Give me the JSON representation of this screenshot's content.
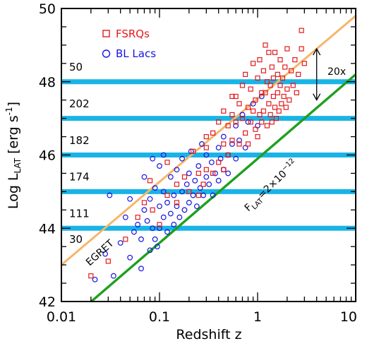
{
  "chart_data": {
    "type": "scatter",
    "xlabel": "Redshift z",
    "ylabel": "Log L",
    "ylabel_sub": "LAT",
    "ylabel_units": "[erg s",
    "ylabel_units_exp": "-1",
    "ylabel_units_close": "]",
    "xscale": "log",
    "xlim": [
      0.01,
      10
    ],
    "ylim": [
      42,
      50
    ],
    "x_ticks": [
      0.01,
      0.1,
      1,
      10
    ],
    "x_tick_labels": [
      "0.01",
      "0.1",
      "1",
      "10"
    ],
    "y_ticks": [
      42,
      44,
      46,
      48,
      50
    ],
    "y_tick_labels": [
      "42",
      "44",
      "46",
      "48",
      "50"
    ],
    "legend": {
      "placement": "top-left",
      "entries": [
        {
          "label": "FSRQs",
          "marker": "square",
          "color": "#e31a1c"
        },
        {
          "label": "BL Lacs",
          "marker": "circle",
          "color": "#1515e0"
        }
      ]
    },
    "bands": {
      "color": "#19b4e6",
      "y": [
        44,
        45,
        46,
        47,
        48
      ],
      "count_labels": [
        {
          "text": "30",
          "y": 43.7
        },
        {
          "text": "111",
          "y": 44.4
        },
        {
          "text": "174",
          "y": 45.4
        },
        {
          "text": "182",
          "y": 46.4
        },
        {
          "text": "202",
          "y": 47.4
        },
        {
          "text": "50",
          "y": 48.4
        }
      ]
    },
    "lines": [
      {
        "name": "EGRET",
        "color": "#f5b66a",
        "x": [
          0.01,
          10
        ],
        "y": [
          43.0,
          49.8
        ]
      },
      {
        "name": "F_LAT",
        "color": "#1ea01e",
        "x": [
          0.01,
          10
        ],
        "y": [
          41.3,
          48.2
        ]
      }
    ],
    "annotations": {
      "egret": "EGRET",
      "flat_prefix": "F",
      "flat_sub": "LAT",
      "flat_eq": "=2×10",
      "flat_exp": "−12",
      "arrow_label": "20x",
      "arrow_x": 4.0,
      "arrow_y": [
        47.5,
        48.9
      ]
    },
    "series": [
      {
        "name": "FSRQs",
        "color": "#e31a1c",
        "marker": "square",
        "points": [
          [
            0.02,
            42.7
          ],
          [
            0.03,
            43.1
          ],
          [
            0.045,
            43.7
          ],
          [
            0.06,
            44.3
          ],
          [
            0.07,
            44.7
          ],
          [
            0.085,
            44.5
          ],
          [
            0.1,
            44.1
          ],
          [
            0.12,
            44.9
          ],
          [
            0.15,
            45.2
          ],
          [
            0.15,
            44.7
          ],
          [
            0.18,
            45.4
          ],
          [
            0.2,
            45.0
          ],
          [
            0.22,
            46.1
          ],
          [
            0.25,
            44.9
          ],
          [
            0.25,
            45.5
          ],
          [
            0.28,
            45.2
          ],
          [
            0.3,
            45.6
          ],
          [
            0.3,
            46.2
          ],
          [
            0.35,
            45.5
          ],
          [
            0.35,
            46.6
          ],
          [
            0.4,
            45.8
          ],
          [
            0.4,
            46.9
          ],
          [
            0.45,
            46.3
          ],
          [
            0.45,
            45.6
          ],
          [
            0.5,
            46.8
          ],
          [
            0.5,
            46.0
          ],
          [
            0.55,
            47.1
          ],
          [
            0.55,
            46.4
          ],
          [
            0.6,
            46.9
          ],
          [
            0.6,
            47.6
          ],
          [
            0.65,
            46.3
          ],
          [
            0.65,
            47.4
          ],
          [
            0.7,
            47.9
          ],
          [
            0.7,
            47.0
          ],
          [
            0.75,
            46.6
          ],
          [
            0.75,
            48.2
          ],
          [
            0.8,
            47.3
          ],
          [
            0.8,
            46.3
          ],
          [
            0.85,
            47.8
          ],
          [
            0.85,
            46.9
          ],
          [
            0.9,
            48.5
          ],
          [
            0.9,
            47.2
          ],
          [
            0.95,
            46.7
          ],
          [
            0.95,
            47.5
          ],
          [
            1.0,
            48.1
          ],
          [
            1.0,
            46.5
          ],
          [
            1.05,
            47.1
          ],
          [
            1.05,
            48.6
          ],
          [
            1.1,
            47.7
          ],
          [
            1.1,
            46.9
          ],
          [
            1.15,
            48.3
          ],
          [
            1.15,
            47.2
          ],
          [
            1.2,
            47.7
          ],
          [
            1.2,
            49.0
          ],
          [
            1.25,
            46.8
          ],
          [
            1.25,
            48.0
          ],
          [
            1.3,
            47.4
          ],
          [
            1.3,
            48.8
          ],
          [
            1.35,
            47.1
          ],
          [
            1.35,
            47.9
          ],
          [
            1.4,
            48.4
          ],
          [
            1.4,
            46.9
          ],
          [
            1.45,
            47.6
          ],
          [
            1.45,
            48.1
          ],
          [
            1.5,
            47.3
          ],
          [
            1.5,
            48.8
          ],
          [
            1.55,
            47.0
          ],
          [
            1.6,
            48.2
          ],
          [
            1.6,
            47.7
          ],
          [
            1.65,
            47.2
          ],
          [
            1.7,
            48.6
          ],
          [
            1.7,
            47.9
          ],
          [
            1.75,
            47.4
          ],
          [
            1.8,
            48.1
          ],
          [
            1.85,
            47.6
          ],
          [
            1.9,
            48.4
          ],
          [
            1.95,
            47.3
          ],
          [
            2.0,
            47.8
          ],
          [
            2.0,
            48.9
          ],
          [
            2.1,
            47.5
          ],
          [
            2.2,
            48.3
          ],
          [
            2.3,
            47.9
          ],
          [
            2.4,
            48.6
          ],
          [
            2.5,
            47.7
          ],
          [
            2.6,
            48.2
          ],
          [
            2.8,
            48.9
          ],
          [
            3.0,
            48.5
          ],
          [
            2.8,
            49.4
          ],
          [
            0.45,
            47.2
          ],
          [
            0.55,
            47.6
          ],
          [
            0.3,
            46.5
          ],
          [
            0.12,
            45.8
          ],
          [
            0.08,
            45.3
          ]
        ]
      },
      {
        "name": "BL Lacs",
        "color": "#1515e0",
        "marker": "circle",
        "points": [
          [
            0.022,
            42.6
          ],
          [
            0.028,
            43.3
          ],
          [
            0.031,
            44.9
          ],
          [
            0.034,
            42.7
          ],
          [
            0.04,
            43.6
          ],
          [
            0.045,
            44.3
          ],
          [
            0.05,
            43.2
          ],
          [
            0.05,
            44.8
          ],
          [
            0.055,
            43.9
          ],
          [
            0.06,
            44.1
          ],
          [
            0.065,
            43.7
          ],
          [
            0.07,
            44.5
          ],
          [
            0.07,
            45.4
          ],
          [
            0.075,
            44.2
          ],
          [
            0.08,
            43.4
          ],
          [
            0.08,
            44.8
          ],
          [
            0.085,
            44.0
          ],
          [
            0.09,
            45.1
          ],
          [
            0.09,
            43.7
          ],
          [
            0.1,
            44.6
          ],
          [
            0.1,
            45.7
          ],
          [
            0.1,
            44.0
          ],
          [
            0.11,
            44.3
          ],
          [
            0.11,
            45.0
          ],
          [
            0.12,
            43.9
          ],
          [
            0.12,
            44.7
          ],
          [
            0.13,
            45.4
          ],
          [
            0.13,
            44.4
          ],
          [
            0.14,
            44.9
          ],
          [
            0.14,
            44.1
          ],
          [
            0.15,
            45.6
          ],
          [
            0.15,
            44.6
          ],
          [
            0.16,
            44.3
          ],
          [
            0.17,
            45.0
          ],
          [
            0.17,
            45.9
          ],
          [
            0.18,
            44.5
          ],
          [
            0.19,
            45.2
          ],
          [
            0.2,
            44.7
          ],
          [
            0.2,
            45.5
          ],
          [
            0.21,
            46.1
          ],
          [
            0.22,
            44.9
          ],
          [
            0.23,
            45.3
          ],
          [
            0.24,
            44.6
          ],
          [
            0.25,
            45.7
          ],
          [
            0.26,
            45.1
          ],
          [
            0.27,
            46.3
          ],
          [
            0.28,
            44.9
          ],
          [
            0.3,
            45.4
          ],
          [
            0.3,
            46.0
          ],
          [
            0.32,
            45.2
          ],
          [
            0.34,
            45.8
          ],
          [
            0.35,
            44.9
          ],
          [
            0.37,
            45.5
          ],
          [
            0.4,
            46.2
          ],
          [
            0.4,
            45.3
          ],
          [
            0.42,
            45.9
          ],
          [
            0.45,
            45.6
          ],
          [
            0.45,
            46.5
          ],
          [
            0.5,
            46.0
          ],
          [
            0.5,
            45.5
          ],
          [
            0.55,
            46.3
          ],
          [
            0.6,
            45.9
          ],
          [
            0.6,
            46.8
          ],
          [
            0.65,
            46.4
          ],
          [
            0.7,
            47.1
          ],
          [
            0.75,
            46.2
          ],
          [
            0.8,
            46.9
          ],
          [
            0.9,
            47.4
          ],
          [
            1.0,
            46.8
          ],
          [
            1.1,
            47.6
          ],
          [
            0.085,
            45.9
          ],
          [
            0.11,
            46.0
          ],
          [
            0.065,
            42.9
          ],
          [
            0.095,
            43.5
          ]
        ]
      }
    ]
  }
}
